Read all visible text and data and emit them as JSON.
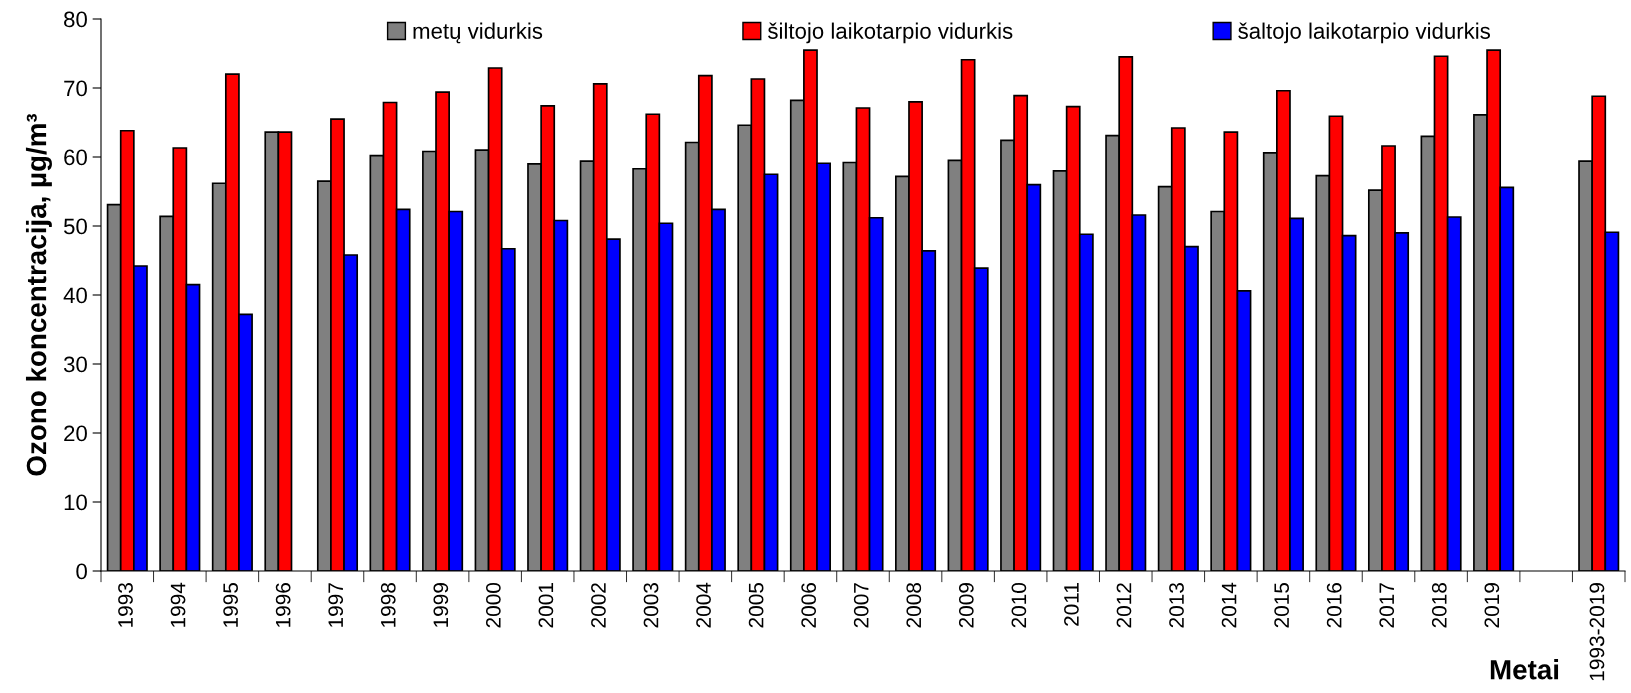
{
  "chart_data": {
    "type": "bar",
    "xlabel": "Metai",
    "ylabel": "Ozono koncentracija, µg/m³",
    "categories": [
      "1993",
      "1994",
      "1995",
      "1996",
      "1997",
      "1998",
      "1999",
      "2000",
      "2001",
      "2002",
      "2003",
      "2004",
      "2005",
      "2006",
      "2007",
      "2008",
      "2009",
      "2010",
      "2011",
      "2012",
      "2013",
      "2014",
      "2015",
      "2016",
      "2017",
      "2018",
      "2019",
      null,
      "1993-2019"
    ],
    "series": [
      {
        "name": "metų vidurkis",
        "color": "#808080",
        "values": [
          53.1,
          51.4,
          56.2,
          63.6,
          56.5,
          60.2,
          60.8,
          61.0,
          59.0,
          59.4,
          58.3,
          62.1,
          64.6,
          68.2,
          59.2,
          57.2,
          59.5,
          62.4,
          58.0,
          63.1,
          55.7,
          52.1,
          60.6,
          57.3,
          55.2,
          63.0,
          66.1,
          null,
          59.4
        ]
      },
      {
        "name": "šiltojo laikotarpio vidurkis",
        "color": "#ff0000",
        "values": [
          63.8,
          61.3,
          72.0,
          63.6,
          65.5,
          67.9,
          69.4,
          72.9,
          67.4,
          70.6,
          66.2,
          71.8,
          71.3,
          75.5,
          67.1,
          68.0,
          74.1,
          68.9,
          67.3,
          74.5,
          64.2,
          63.6,
          69.6,
          65.9,
          61.6,
          74.6,
          75.5,
          null,
          68.8
        ]
      },
      {
        "name": "šaltojo laikotarpio vidurkis",
        "color": "#0000ff",
        "values": [
          44.2,
          41.5,
          37.2,
          null,
          45.8,
          52.4,
          52.1,
          46.7,
          50.8,
          48.1,
          50.4,
          52.4,
          57.5,
          59.1,
          51.2,
          46.4,
          43.9,
          56.0,
          48.8,
          51.6,
          47.0,
          40.6,
          51.1,
          48.6,
          49.0,
          51.3,
          55.6,
          null,
          49.1
        ]
      }
    ],
    "ylim": [
      0,
      80
    ],
    "yticks": [
      0,
      10,
      20,
      30,
      40,
      50,
      60,
      70,
      80
    ],
    "grid": false,
    "legend": "top"
  }
}
